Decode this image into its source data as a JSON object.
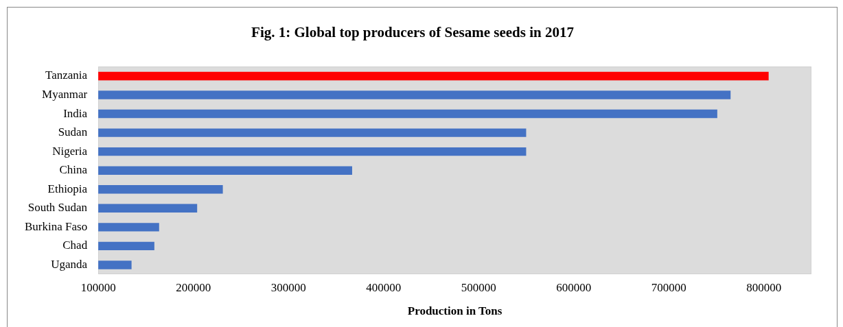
{
  "chart_data": {
    "type": "bar",
    "orientation": "horizontal",
    "title": "Fig. 1: Global top producers of Sesame seeds in 2017",
    "xlabel": "Production in Tons",
    "categories": [
      "Tanzania",
      "Myanmar",
      "India",
      "Sudan",
      "Nigeria",
      "China",
      "Ethiopia",
      "South Sudan",
      "Burkina Faso",
      "Chad",
      "Uganda"
    ],
    "values": [
      805000,
      765000,
      751000,
      550000,
      550000,
      367000,
      231000,
      204000,
      164000,
      159000,
      135000
    ],
    "colors": [
      "#ff0000",
      "#4472c4",
      "#4472c4",
      "#4472c4",
      "#4472c4",
      "#4472c4",
      "#4472c4",
      "#4472c4",
      "#4472c4",
      "#4472c4",
      "#4472c4"
    ],
    "xlim": [
      100000,
      850000
    ],
    "xticks": [
      100000,
      200000,
      300000,
      400000,
      500000,
      600000,
      700000,
      800000
    ],
    "grid": false,
    "legend": false
  }
}
